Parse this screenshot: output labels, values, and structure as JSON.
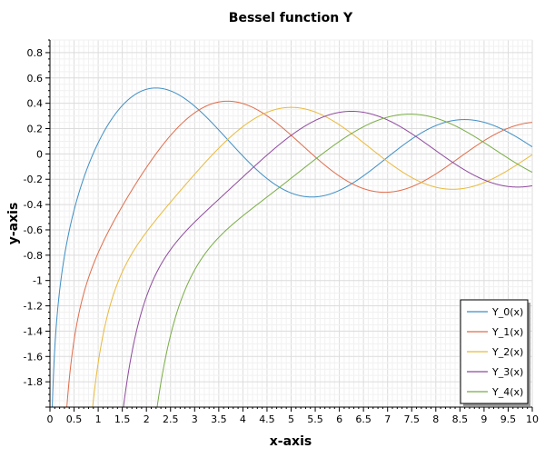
{
  "chart_data": {
    "type": "line",
    "title": "Bessel function Y",
    "xlabel": "x-axis",
    "ylabel": "y-axis",
    "xlim": [
      0,
      10
    ],
    "ylim": [
      -2,
      0.9
    ],
    "x_ticks": [
      0,
      0.5,
      1,
      1.5,
      2,
      2.5,
      3,
      3.5,
      4,
      4.5,
      5,
      5.5,
      6,
      6.5,
      7,
      7.5,
      8,
      8.5,
      9,
      9.5,
      10
    ],
    "x_tick_labels": [
      "0",
      "0.5",
      "1",
      "1.5",
      "2",
      "2.5",
      "3",
      "3.5",
      "4",
      "4.5",
      "5",
      "5.5",
      "6",
      "6.5",
      "7",
      "7.5",
      "8",
      "8.5",
      "9",
      "9.5",
      "10"
    ],
    "y_ticks": [
      0.8,
      0.6,
      0.4,
      0.2,
      0,
      -0.2,
      -0.4,
      -0.6,
      -0.8,
      -1,
      -1.2,
      -1.4,
      -1.6,
      -1.8
    ],
    "y_tick_labels": [
      "0.8",
      "0.6",
      "0.4",
      "0.2",
      "0",
      "-0.2",
      "-0.4",
      "-0.6",
      "-0.8",
      "-1",
      "-1.2",
      "-1.4",
      "-1.6",
      "-1.8"
    ],
    "grid": true,
    "legend_position": "bottom-right",
    "series": [
      {
        "name": "Y_0(x)",
        "color": "#3e8ec4",
        "order": 0
      },
      {
        "name": "Y_1(x)",
        "color": "#e06c4a",
        "order": 1
      },
      {
        "name": "Y_2(x)",
        "color": "#e9b93c",
        "order": 2
      },
      {
        "name": "Y_3(x)",
        "color": "#8e4a9d",
        "order": 3
      },
      {
        "name": "Y_4(x)",
        "color": "#78ac44",
        "order": 4
      }
    ]
  }
}
